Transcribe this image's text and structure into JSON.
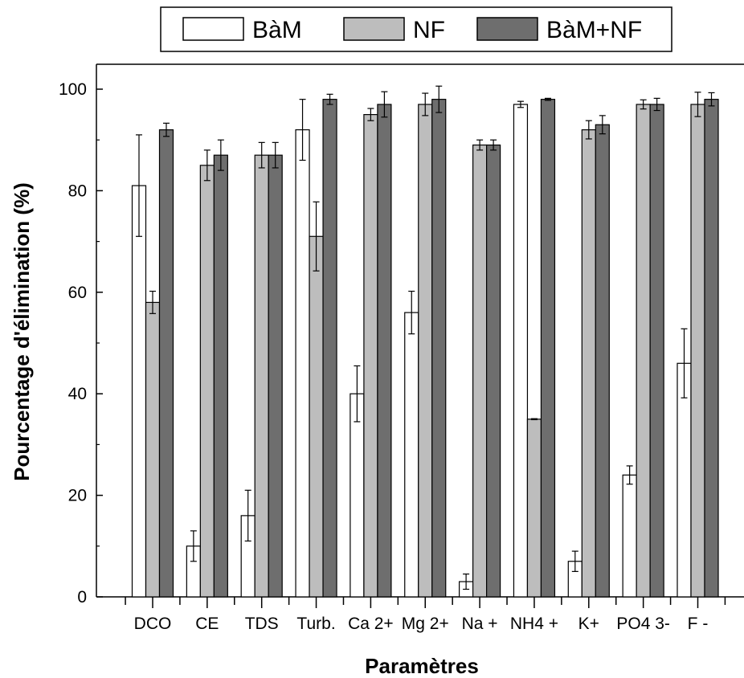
{
  "chart_data": {
    "type": "bar",
    "title": "",
    "xlabel": "Paramètres",
    "ylabel": "Pourcentage d'élimination (%)",
    "ylim": [
      0,
      100
    ],
    "yticks": [
      0,
      20,
      40,
      60,
      80,
      100
    ],
    "categories": [
      "DCO",
      "CE",
      "TDS",
      "Turb.",
      "Ca 2+",
      "Mg 2+",
      "Na +",
      "NH4 +",
      "K+",
      "PO4 3-",
      "F -"
    ],
    "series": [
      {
        "name": "BàM",
        "color": "#ffffff",
        "values": [
          81,
          10,
          16,
          92,
          40,
          56,
          3,
          97,
          7,
          24,
          46
        ],
        "errors": [
          10,
          3,
          5,
          6,
          5.5,
          4.2,
          1.5,
          0.6,
          2,
          1.8,
          6.8
        ]
      },
      {
        "name": "NF",
        "color": "#bdbdbd",
        "values": [
          58,
          85,
          87,
          71,
          95,
          97,
          89,
          35,
          92,
          97,
          97
        ],
        "errors": [
          2.2,
          3,
          2.5,
          6.8,
          1.2,
          2.2,
          1,
          0.1,
          1.8,
          0.9,
          2.4
        ]
      },
      {
        "name": "BàM+NF",
        "color": "#6e6e6e",
        "values": [
          92,
          87,
          87,
          98,
          97,
          98,
          89,
          98,
          93,
          97,
          98
        ],
        "errors": [
          1.3,
          3,
          2.5,
          1,
          2.5,
          2.6,
          1,
          0.2,
          1.8,
          1.2,
          1.3
        ]
      }
    ],
    "legend_position": "top-center",
    "grid": false
  }
}
